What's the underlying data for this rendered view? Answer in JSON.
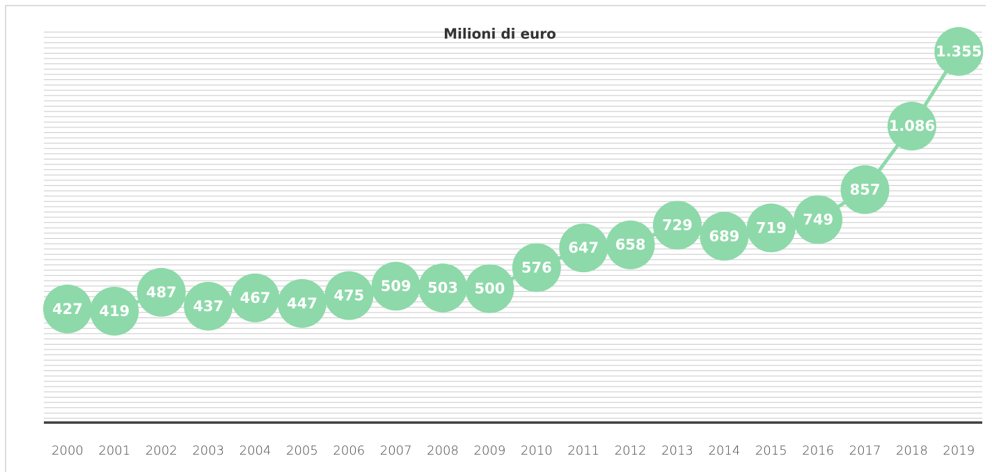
{
  "chart_data": {
    "type": "line",
    "title": "Milioni di euro",
    "categories": [
      "2000",
      "2001",
      "2002",
      "2003",
      "2004",
      "2005",
      "2006",
      "2007",
      "2008",
      "2009",
      "2010",
      "2011",
      "2012",
      "2013",
      "2014",
      "2015",
      "2016",
      "2017",
      "2018",
      "2019"
    ],
    "values": [
      427,
      419,
      487,
      437,
      467,
      447,
      475,
      509,
      503,
      500,
      576,
      647,
      658,
      729,
      689,
      719,
      749,
      857,
      1086,
      1355
    ],
    "value_labels": [
      "427",
      "419",
      "487",
      "437",
      "467",
      "447",
      "475",
      "509",
      "503",
      "500",
      "576",
      "647",
      "658",
      "729",
      "689",
      "719",
      "749",
      "857",
      "1.086",
      "1.355"
    ],
    "color": "#8dd9a9",
    "ylim": [
      0,
      1400
    ]
  }
}
